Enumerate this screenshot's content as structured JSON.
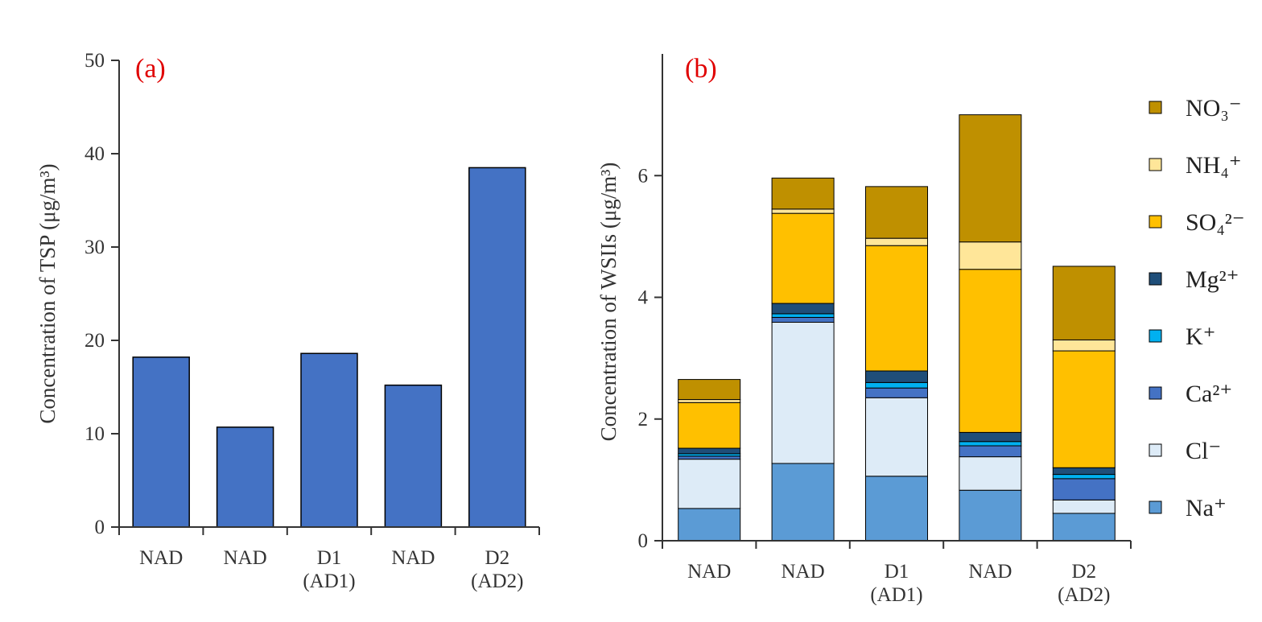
{
  "chart_data": [
    {
      "type": "bar",
      "panel_label": "(a)",
      "ylabel": "Concentration of TSP (μg/m³)",
      "ylim": [
        0,
        50
      ],
      "yticks": [
        0,
        10,
        20,
        30,
        40,
        50
      ],
      "categories": [
        [
          "NAD"
        ],
        [
          "NAD"
        ],
        [
          "D1",
          "(AD1)"
        ],
        [
          "NAD"
        ],
        [
          "D2",
          "(AD2)"
        ]
      ],
      "values": [
        18.2,
        10.7,
        18.6,
        15.2,
        38.5
      ],
      "color": "#4472c4"
    },
    {
      "type": "bar",
      "stacked": true,
      "panel_label": "(b)",
      "ylabel": "Concentration of WSIIs (μg/m³)",
      "ylim": [
        0,
        8
      ],
      "yticks": [
        0,
        2,
        4,
        6
      ],
      "categories": [
        [
          "NAD"
        ],
        [
          "NAD"
        ],
        [
          "D1",
          "(AD1)"
        ],
        [
          "NAD"
        ],
        [
          "D2",
          "(AD2)"
        ]
      ],
      "legend_position": "right",
      "series": [
        {
          "name": "Na⁺",
          "color": "#5b9bd5",
          "values": [
            0.53,
            1.27,
            1.06,
            0.83,
            0.45
          ]
        },
        {
          "name": "Cl⁻",
          "color": "#ddebf7",
          "values": [
            0.81,
            2.32,
            1.29,
            0.55,
            0.22
          ]
        },
        {
          "name": "Ca²⁺",
          "color": "#4472c4",
          "values": [
            0.05,
            0.08,
            0.16,
            0.18,
            0.35
          ]
        },
        {
          "name": "K⁺",
          "color": "#00b0f0",
          "values": [
            0.04,
            0.06,
            0.09,
            0.07,
            0.07
          ]
        },
        {
          "name": "Mg²⁺",
          "color": "#1f4e79",
          "values": [
            0.09,
            0.17,
            0.19,
            0.15,
            0.11
          ]
        },
        {
          "name": "SO₄²⁻",
          "color": "#ffc000",
          "values": [
            0.75,
            1.48,
            2.06,
            2.68,
            1.92
          ]
        },
        {
          "name": "NH₄⁺",
          "color": "#ffe699",
          "values": [
            0.05,
            0.07,
            0.12,
            0.45,
            0.18
          ]
        },
        {
          "name": "NO₃⁻",
          "color": "#bf9000",
          "values": [
            0.33,
            0.51,
            0.85,
            2.09,
            1.21
          ]
        }
      ]
    }
  ]
}
